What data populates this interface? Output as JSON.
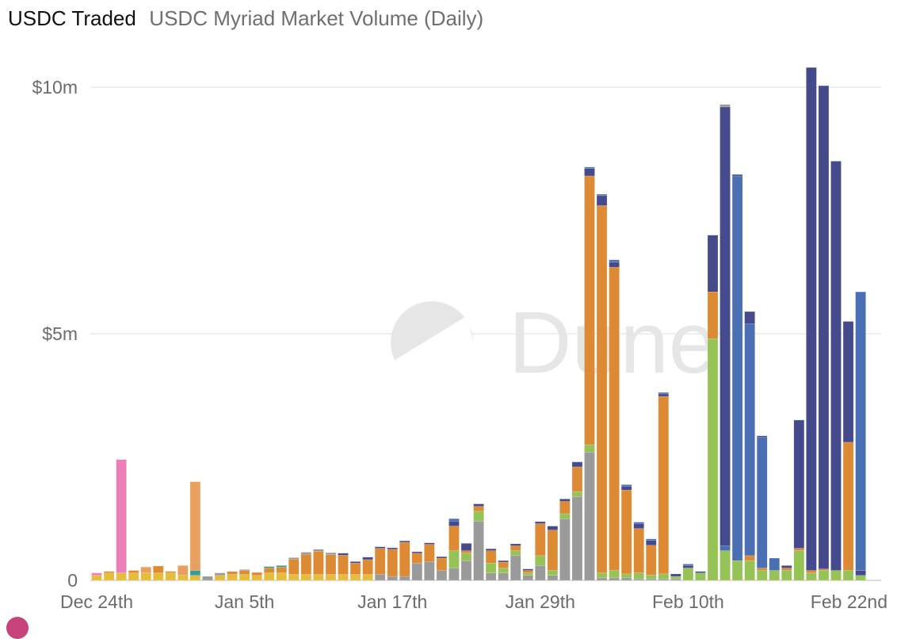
{
  "header": {
    "title": "USDC Traded",
    "subtitle": "USDC Myriad Market Volume (Daily)"
  },
  "watermark": {
    "text": "Dune"
  },
  "colors": {
    "grid": "#e8e8e8",
    "axis": "#cfcfcf"
  },
  "chart_data": {
    "type": "bar",
    "stacked": true,
    "title": "USDC Myriad Market Volume (Daily)",
    "xlabel": "",
    "ylabel": "",
    "ylim": [
      0,
      10000000
    ],
    "y_ticks": [
      {
        "value": 0,
        "label": "0"
      },
      {
        "value": 5000000,
        "label": "$5m"
      },
      {
        "value": 10000000,
        "label": "$10m"
      }
    ],
    "x_ticks": [
      {
        "index": 0,
        "label": "Dec 24th"
      },
      {
        "index": 12,
        "label": "Jan 5th"
      },
      {
        "index": 24,
        "label": "Jan 17th"
      },
      {
        "index": 36,
        "label": "Jan 29th"
      },
      {
        "index": 48,
        "label": "Feb 10th"
      },
      {
        "index": 60,
        "label": "Feb 22nd"
      }
    ],
    "legend": "none",
    "grid": true,
    "series_colors": {
      "yellow": "#e6bd3a",
      "green": "#95c355",
      "gray": "#9a9a9a",
      "orange": "#dd8a35",
      "blue": "#4a6fb2",
      "navy": "#444a8c",
      "pink": "#ea80b7",
      "peach": "#e8a060",
      "teal": "#3a9a95"
    },
    "bars": [
      {
        "d": 0,
        "s": [
          [
            "yellow",
            100000
          ],
          [
            "pink",
            50000
          ]
        ]
      },
      {
        "d": 1,
        "s": [
          [
            "yellow",
            150000
          ],
          [
            "orange",
            30000
          ]
        ]
      },
      {
        "d": 2,
        "s": [
          [
            "yellow",
            150000
          ],
          [
            "pink",
            2300000
          ]
        ]
      },
      {
        "d": 3,
        "s": [
          [
            "yellow",
            150000
          ],
          [
            "orange",
            50000
          ]
        ]
      },
      {
        "d": 4,
        "s": [
          [
            "yellow",
            150000
          ],
          [
            "peach",
            120000
          ]
        ]
      },
      {
        "d": 5,
        "s": [
          [
            "yellow",
            150000
          ],
          [
            "orange",
            140000
          ]
        ]
      },
      {
        "d": 6,
        "s": [
          [
            "yellow",
            150000
          ],
          [
            "orange",
            30000
          ]
        ]
      },
      {
        "d": 7,
        "s": [
          [
            "yellow",
            100000
          ],
          [
            "peach",
            200000
          ]
        ]
      },
      {
        "d": 8,
        "s": [
          [
            "yellow",
            100000
          ],
          [
            "teal",
            100000
          ],
          [
            "peach",
            1800000
          ]
        ]
      },
      {
        "d": 9,
        "s": [
          [
            "gray",
            80000
          ]
        ]
      },
      {
        "d": 10,
        "s": [
          [
            "yellow",
            100000
          ],
          [
            "gray",
            50000
          ]
        ]
      },
      {
        "d": 11,
        "s": [
          [
            "yellow",
            120000
          ],
          [
            "orange",
            60000
          ]
        ]
      },
      {
        "d": 12,
        "s": [
          [
            "yellow",
            120000
          ],
          [
            "orange",
            80000
          ],
          [
            "gray",
            20000
          ]
        ]
      },
      {
        "d": 13,
        "s": [
          [
            "yellow",
            100000
          ],
          [
            "orange",
            60000
          ]
        ]
      },
      {
        "d": 14,
        "s": [
          [
            "yellow",
            150000
          ],
          [
            "orange",
            100000
          ],
          [
            "teal",
            30000
          ]
        ]
      },
      {
        "d": 15,
        "s": [
          [
            "yellow",
            150000
          ],
          [
            "orange",
            120000
          ],
          [
            "teal",
            30000
          ]
        ]
      },
      {
        "d": 16,
        "s": [
          [
            "yellow",
            120000
          ],
          [
            "orange",
            310000
          ],
          [
            "gray",
            30000
          ]
        ]
      },
      {
        "d": 17,
        "s": [
          [
            "yellow",
            120000
          ],
          [
            "orange",
            410000
          ],
          [
            "gray",
            40000
          ]
        ]
      },
      {
        "d": 18,
        "s": [
          [
            "yellow",
            120000
          ],
          [
            "orange",
            470000
          ],
          [
            "gray",
            40000
          ]
        ]
      },
      {
        "d": 19,
        "s": [
          [
            "yellow",
            120000
          ],
          [
            "orange",
            400000
          ],
          [
            "gray",
            40000
          ]
        ]
      },
      {
        "d": 20,
        "s": [
          [
            "yellow",
            120000
          ],
          [
            "orange",
            390000
          ],
          [
            "navy",
            40000
          ]
        ]
      },
      {
        "d": 21,
        "s": [
          [
            "yellow",
            120000
          ],
          [
            "orange",
            230000
          ],
          [
            "navy",
            30000
          ]
        ]
      },
      {
        "d": 22,
        "s": [
          [
            "yellow",
            120000
          ],
          [
            "orange",
            300000
          ],
          [
            "navy",
            50000
          ]
        ]
      },
      {
        "d": 23,
        "s": [
          [
            "gray",
            120000
          ],
          [
            "orange",
            530000
          ],
          [
            "navy",
            30000
          ]
        ]
      },
      {
        "d": 24,
        "s": [
          [
            "gray",
            80000
          ],
          [
            "orange",
            550000
          ],
          [
            "navy",
            30000
          ]
        ]
      },
      {
        "d": 25,
        "s": [
          [
            "gray",
            80000
          ],
          [
            "orange",
            690000
          ],
          [
            "navy",
            30000
          ]
        ]
      },
      {
        "d": 26,
        "s": [
          [
            "gray",
            350000
          ],
          [
            "orange",
            200000
          ],
          [
            "navy",
            30000
          ]
        ]
      },
      {
        "d": 27,
        "s": [
          [
            "gray",
            380000
          ],
          [
            "orange",
            350000
          ],
          [
            "navy",
            30000
          ]
        ]
      },
      {
        "d": 28,
        "s": [
          [
            "gray",
            200000
          ],
          [
            "orange",
            250000
          ],
          [
            "navy",
            30000
          ]
        ]
      },
      {
        "d": 29,
        "s": [
          [
            "gray",
            250000
          ],
          [
            "green",
            350000
          ],
          [
            "orange",
            500000
          ],
          [
            "navy",
            100000
          ],
          [
            "blue",
            50000
          ]
        ]
      },
      {
        "d": 30,
        "s": [
          [
            "gray",
            400000
          ],
          [
            "green",
            150000
          ],
          [
            "orange",
            50000
          ],
          [
            "navy",
            150000
          ]
        ]
      },
      {
        "d": 31,
        "s": [
          [
            "gray",
            1200000
          ],
          [
            "green",
            200000
          ],
          [
            "orange",
            100000
          ],
          [
            "navy",
            50000
          ]
        ]
      },
      {
        "d": 32,
        "s": [
          [
            "gray",
            150000
          ],
          [
            "green",
            200000
          ],
          [
            "orange",
            250000
          ],
          [
            "navy",
            40000
          ]
        ]
      },
      {
        "d": 33,
        "s": [
          [
            "gray",
            150000
          ],
          [
            "green",
            100000
          ],
          [
            "orange",
            120000
          ],
          [
            "navy",
            30000
          ]
        ]
      },
      {
        "d": 34,
        "s": [
          [
            "gray",
            500000
          ],
          [
            "green",
            100000
          ],
          [
            "orange",
            100000
          ],
          [
            "navy",
            40000
          ]
        ]
      },
      {
        "d": 35,
        "s": [
          [
            "gray",
            100000
          ],
          [
            "green",
            50000
          ],
          [
            "orange",
            50000
          ],
          [
            "navy",
            30000
          ]
        ]
      },
      {
        "d": 36,
        "s": [
          [
            "gray",
            300000
          ],
          [
            "green",
            200000
          ],
          [
            "orange",
            650000
          ],
          [
            "navy",
            40000
          ]
        ]
      },
      {
        "d": 37,
        "s": [
          [
            "gray",
            100000
          ],
          [
            "green",
            100000
          ],
          [
            "orange",
            820000
          ],
          [
            "navy",
            80000
          ]
        ]
      },
      {
        "d": 38,
        "s": [
          [
            "gray",
            1250000
          ],
          [
            "green",
            100000
          ],
          [
            "orange",
            250000
          ],
          [
            "navy",
            50000
          ]
        ]
      },
      {
        "d": 39,
        "s": [
          [
            "gray",
            1700000
          ],
          [
            "green",
            100000
          ],
          [
            "orange",
            500000
          ],
          [
            "navy",
            100000
          ]
        ]
      },
      {
        "d": 40,
        "s": [
          [
            "gray",
            2600000
          ],
          [
            "green",
            150000
          ],
          [
            "orange",
            5450000
          ],
          [
            "navy",
            150000
          ],
          [
            "blue",
            30000
          ]
        ]
      },
      {
        "d": 41,
        "s": [
          [
            "gray",
            50000
          ],
          [
            "green",
            100000
          ],
          [
            "orange",
            7450000
          ],
          [
            "navy",
            200000
          ],
          [
            "blue",
            30000
          ]
        ]
      },
      {
        "d": 42,
        "s": [
          [
            "gray",
            50000
          ],
          [
            "green",
            150000
          ],
          [
            "orange",
            6150000
          ],
          [
            "navy",
            100000
          ],
          [
            "blue",
            50000
          ]
        ]
      },
      {
        "d": 43,
        "s": [
          [
            "gray",
            50000
          ],
          [
            "green",
            80000
          ],
          [
            "orange",
            1700000
          ],
          [
            "navy",
            80000
          ],
          [
            "blue",
            30000
          ]
        ]
      },
      {
        "d": 44,
        "s": [
          [
            "gray",
            30000
          ],
          [
            "green",
            120000
          ],
          [
            "orange",
            900000
          ],
          [
            "navy",
            100000
          ],
          [
            "blue",
            30000
          ]
        ]
      },
      {
        "d": 45,
        "s": [
          [
            "gray",
            30000
          ],
          [
            "green",
            80000
          ],
          [
            "orange",
            600000
          ],
          [
            "navy",
            100000
          ],
          [
            "blue",
            30000
          ]
        ]
      },
      {
        "d": 46,
        "s": [
          [
            "gray",
            30000
          ],
          [
            "green",
            100000
          ],
          [
            "orange",
            3600000
          ],
          [
            "navy",
            50000
          ],
          [
            "blue",
            30000
          ]
        ]
      },
      {
        "d": 47,
        "s": [
          [
            "gray",
            30000
          ],
          [
            "green",
            50000
          ],
          [
            "navy",
            50000
          ]
        ]
      },
      {
        "d": 48,
        "s": [
          [
            "green",
            250000
          ],
          [
            "navy",
            50000
          ],
          [
            "blue",
            30000
          ]
        ]
      },
      {
        "d": 49,
        "s": [
          [
            "green",
            150000
          ],
          [
            "navy",
            30000
          ]
        ]
      },
      {
        "d": 50,
        "s": [
          [
            "green",
            4900000
          ],
          [
            "orange",
            950000
          ],
          [
            "navy",
            1150000
          ]
        ]
      },
      {
        "d": 51,
        "s": [
          [
            "green",
            600000
          ],
          [
            "blue",
            100000
          ],
          [
            "navy",
            8900000
          ],
          [
            "gray",
            50000
          ]
        ]
      },
      {
        "d": 52,
        "s": [
          [
            "green",
            400000
          ],
          [
            "blue",
            7800000
          ],
          [
            "navy",
            30000
          ]
        ]
      },
      {
        "d": 53,
        "s": [
          [
            "green",
            400000
          ],
          [
            "orange",
            100000
          ],
          [
            "blue",
            4700000
          ],
          [
            "navy",
            250000
          ]
        ]
      },
      {
        "d": 54,
        "s": [
          [
            "green",
            200000
          ],
          [
            "orange",
            50000
          ],
          [
            "blue",
            2650000
          ],
          [
            "navy",
            30000
          ]
        ]
      },
      {
        "d": 55,
        "s": [
          [
            "green",
            200000
          ],
          [
            "blue",
            250000
          ]
        ]
      },
      {
        "d": 56,
        "s": [
          [
            "green",
            200000
          ],
          [
            "orange",
            50000
          ],
          [
            "navy",
            50000
          ]
        ]
      },
      {
        "d": 57,
        "s": [
          [
            "green",
            600000
          ],
          [
            "orange",
            50000
          ],
          [
            "navy",
            2600000
          ]
        ]
      },
      {
        "d": 58,
        "s": [
          [
            "green",
            150000
          ],
          [
            "orange",
            50000
          ],
          [
            "navy",
            10200000
          ]
        ]
      },
      {
        "d": 59,
        "s": [
          [
            "green",
            200000
          ],
          [
            "orange",
            30000
          ],
          [
            "navy",
            9800000
          ]
        ]
      },
      {
        "d": 60,
        "s": [
          [
            "green",
            200000
          ],
          [
            "navy",
            8300000
          ]
        ]
      },
      {
        "d": 61,
        "s": [
          [
            "green",
            200000
          ],
          [
            "orange",
            2600000
          ],
          [
            "navy",
            2450000
          ]
        ]
      },
      {
        "d": 62,
        "s": [
          [
            "green",
            100000
          ],
          [
            "navy",
            100000
          ],
          [
            "blue",
            5650000
          ]
        ]
      }
    ]
  }
}
